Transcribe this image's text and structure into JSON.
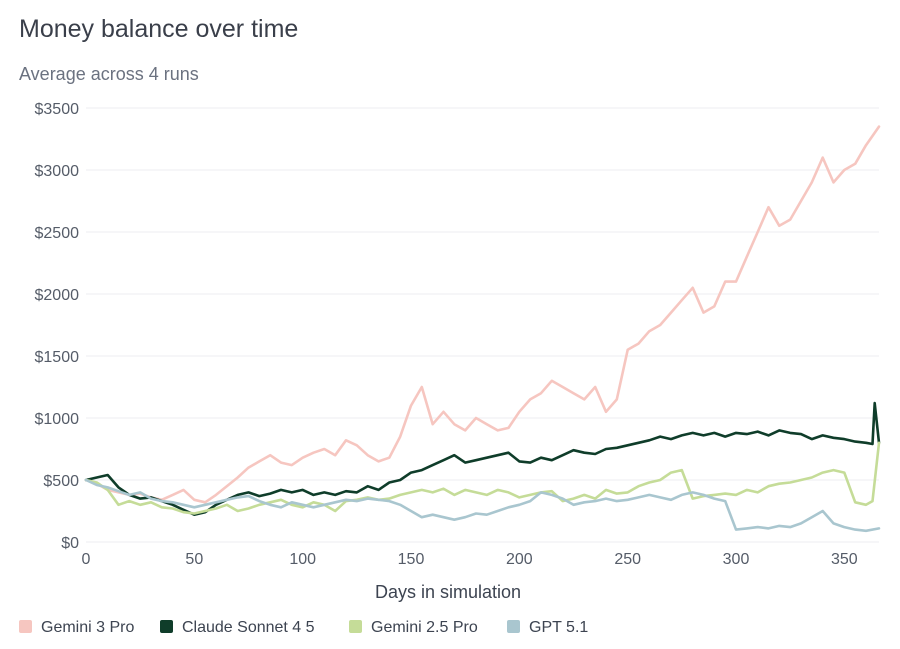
{
  "chart_data": {
    "type": "line",
    "title": "Money balance over time",
    "subtitle": "Average across 4 runs",
    "xlabel": "Days in simulation",
    "ylabel": "",
    "xlim": [
      0,
      366
    ],
    "ylim": [
      0,
      3500
    ],
    "x_ticks": [
      0,
      50,
      100,
      150,
      200,
      250,
      300,
      350
    ],
    "x_tick_labels": [
      "0",
      "50",
      "100",
      "150",
      "200",
      "250",
      "300",
      "350"
    ],
    "y_ticks": [
      0,
      500,
      1000,
      1500,
      2000,
      2500,
      3000,
      3500
    ],
    "y_tick_labels": [
      "$0",
      "$500",
      "$1000",
      "$1500",
      "$2000",
      "$2500",
      "$3000",
      "$3500"
    ],
    "grid": "horizontal",
    "legend_position": "bottom-left",
    "series": [
      {
        "name": "Gemini 3 Pro",
        "color": "#f6c6c0",
        "x": [
          0,
          5,
          10,
          15,
          20,
          25,
          30,
          35,
          40,
          45,
          50,
          55,
          60,
          65,
          70,
          75,
          80,
          85,
          90,
          95,
          100,
          105,
          110,
          115,
          120,
          125,
          130,
          135,
          140,
          145,
          150,
          155,
          160,
          165,
          170,
          175,
          180,
          185,
          190,
          195,
          200,
          205,
          210,
          215,
          220,
          225,
          230,
          235,
          240,
          245,
          250,
          255,
          260,
          265,
          270,
          275,
          280,
          285,
          290,
          295,
          300,
          305,
          310,
          315,
          320,
          325,
          330,
          335,
          340,
          345,
          350,
          355,
          360,
          366
        ],
        "values": [
          500,
          470,
          420,
          400,
          380,
          390,
          360,
          340,
          380,
          420,
          340,
          320,
          380,
          450,
          520,
          600,
          650,
          700,
          640,
          620,
          680,
          720,
          750,
          700,
          820,
          780,
          700,
          650,
          680,
          850,
          1100,
          1250,
          950,
          1050,
          950,
          900,
          1000,
          950,
          900,
          920,
          1050,
          1150,
          1200,
          1300,
          1250,
          1200,
          1150,
          1250,
          1050,
          1150,
          1550,
          1600,
          1700,
          1750,
          1850,
          1950,
          2050,
          1850,
          1900,
          2100,
          2100,
          2300,
          2500,
          2700,
          2550,
          2600,
          2750,
          2900,
          3100,
          2900,
          3000,
          3050,
          3200,
          3350
        ]
      },
      {
        "name": "Claude Sonnet 4 5",
        "color": "#0f3d2a",
        "x": [
          0,
          5,
          10,
          15,
          20,
          25,
          30,
          35,
          40,
          45,
          50,
          55,
          60,
          65,
          70,
          75,
          80,
          85,
          90,
          95,
          100,
          105,
          110,
          115,
          120,
          125,
          130,
          135,
          140,
          145,
          150,
          155,
          160,
          165,
          170,
          175,
          180,
          185,
          190,
          195,
          200,
          205,
          210,
          215,
          220,
          225,
          230,
          235,
          240,
          245,
          250,
          255,
          260,
          265,
          270,
          275,
          280,
          285,
          290,
          295,
          300,
          305,
          310,
          315,
          320,
          325,
          330,
          335,
          340,
          345,
          350,
          355,
          360,
          363,
          364,
          366
        ],
        "values": [
          500,
          520,
          540,
          440,
          380,
          350,
          360,
          330,
          300,
          260,
          220,
          240,
          300,
          340,
          380,
          400,
          370,
          390,
          420,
          400,
          420,
          380,
          400,
          380,
          410,
          400,
          450,
          420,
          480,
          500,
          560,
          580,
          620,
          660,
          700,
          640,
          660,
          680,
          700,
          720,
          650,
          640,
          680,
          660,
          700,
          740,
          720,
          710,
          750,
          760,
          780,
          800,
          820,
          850,
          830,
          860,
          880,
          860,
          880,
          850,
          880,
          870,
          890,
          860,
          900,
          880,
          870,
          830,
          860,
          840,
          830,
          810,
          800,
          790,
          1120,
          800
        ]
      },
      {
        "name": "Gemini 2.5 Pro",
        "color": "#c5dc98",
        "x": [
          0,
          5,
          10,
          15,
          20,
          25,
          30,
          35,
          40,
          45,
          50,
          55,
          60,
          65,
          70,
          75,
          80,
          85,
          90,
          95,
          100,
          105,
          110,
          115,
          120,
          125,
          130,
          135,
          140,
          145,
          150,
          155,
          160,
          165,
          170,
          175,
          180,
          185,
          190,
          195,
          200,
          205,
          210,
          215,
          220,
          225,
          230,
          235,
          240,
          245,
          250,
          255,
          260,
          265,
          270,
          275,
          280,
          285,
          290,
          295,
          300,
          305,
          310,
          315,
          320,
          325,
          330,
          335,
          340,
          345,
          350,
          355,
          360,
          363,
          366
        ],
        "values": [
          500,
          480,
          420,
          300,
          330,
          300,
          320,
          280,
          270,
          240,
          230,
          250,
          270,
          300,
          250,
          270,
          300,
          320,
          340,
          300,
          280,
          320,
          300,
          250,
          330,
          340,
          360,
          340,
          350,
          380,
          400,
          420,
          400,
          430,
          380,
          420,
          400,
          380,
          420,
          400,
          360,
          380,
          400,
          410,
          330,
          350,
          380,
          350,
          420,
          390,
          400,
          450,
          480,
          500,
          560,
          580,
          350,
          370,
          380,
          390,
          380,
          420,
          400,
          450,
          470,
          480,
          500,
          520,
          560,
          580,
          560,
          320,
          300,
          330,
          800
        ]
      },
      {
        "name": "GPT 5.1",
        "color": "#a9c6cf",
        "x": [
          0,
          5,
          10,
          15,
          20,
          25,
          30,
          35,
          40,
          45,
          50,
          55,
          60,
          65,
          70,
          75,
          80,
          85,
          90,
          95,
          100,
          105,
          110,
          115,
          120,
          125,
          130,
          135,
          140,
          145,
          150,
          155,
          160,
          165,
          170,
          175,
          180,
          185,
          190,
          195,
          200,
          205,
          210,
          215,
          220,
          225,
          230,
          235,
          240,
          245,
          250,
          255,
          260,
          265,
          270,
          275,
          280,
          285,
          290,
          295,
          300,
          305,
          310,
          315,
          320,
          325,
          330,
          335,
          340,
          345,
          350,
          355,
          360,
          366
        ],
        "values": [
          500,
          460,
          440,
          410,
          380,
          400,
          350,
          330,
          320,
          300,
          280,
          300,
          320,
          340,
          360,
          370,
          330,
          300,
          280,
          320,
          300,
          280,
          300,
          320,
          340,
          330,
          350,
          340,
          330,
          300,
          250,
          200,
          220,
          200,
          180,
          200,
          230,
          220,
          250,
          280,
          300,
          330,
          400,
          380,
          350,
          300,
          320,
          330,
          350,
          330,
          340,
          360,
          380,
          360,
          340,
          380,
          400,
          380,
          350,
          330,
          100,
          110,
          120,
          110,
          130,
          120,
          150,
          200,
          250,
          150,
          120,
          100,
          90,
          110
        ]
      }
    ]
  }
}
